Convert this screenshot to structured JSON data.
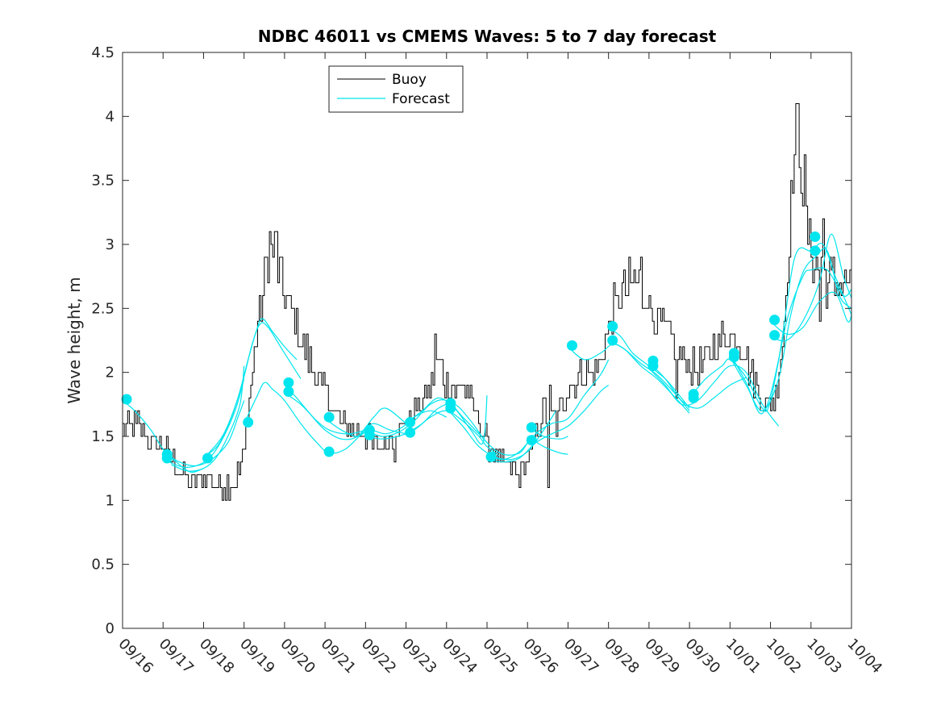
{
  "chart_data": {
    "type": "line",
    "title": "NDBC 46011 vs CMEMS Waves: 5 to 7 day forecast",
    "ylabel": "Wave height, m",
    "xlabel": "",
    "xlim": [
      0,
      18
    ],
    "ylim": [
      0,
      4.5
    ],
    "y_ticks": [
      "0",
      "0.5",
      "1",
      "1.5",
      "2",
      "2.5",
      "3",
      "3.5",
      "4",
      "4.5"
    ],
    "x_ticks": [
      "09/16",
      "09/17",
      "09/18",
      "09/19",
      "09/20",
      "09/21",
      "09/22",
      "09/23",
      "09/24",
      "09/25",
      "09/26",
      "09/27",
      "09/28",
      "09/29",
      "09/30",
      "10/01",
      "10/02",
      "10/03",
      "10/04"
    ],
    "legend": {
      "position": "top-left",
      "entries": [
        "Buoy",
        "Forecast"
      ]
    },
    "colors": {
      "buoy": "#000000",
      "forecast": "#00e5ee"
    },
    "buoy_anchors": [
      [
        0.0,
        1.55
      ],
      [
        0.3,
        1.62
      ],
      [
        0.6,
        1.5
      ],
      [
        1.0,
        1.4
      ],
      [
        1.3,
        1.3
      ],
      [
        1.7,
        1.15
      ],
      [
        2.1,
        1.2
      ],
      [
        2.4,
        1.1
      ],
      [
        2.8,
        1.15
      ],
      [
        3.0,
        1.4
      ],
      [
        3.3,
        2.3
      ],
      [
        3.5,
        2.7
      ],
      [
        3.6,
        2.95
      ],
      [
        3.75,
        2.95
      ],
      [
        3.9,
        2.7
      ],
      [
        4.2,
        2.45
      ],
      [
        4.6,
        2.1
      ],
      [
        4.9,
        1.9
      ],
      [
        5.2,
        1.7
      ],
      [
        5.6,
        1.55
      ],
      [
        6.0,
        1.5
      ],
      [
        6.2,
        1.4
      ],
      [
        6.5,
        1.45
      ],
      [
        6.9,
        1.6
      ],
      [
        7.4,
        1.75
      ],
      [
        7.8,
        2.05
      ],
      [
        8.1,
        1.85
      ],
      [
        8.4,
        1.9
      ],
      [
        8.7,
        1.7
      ],
      [
        9.0,
        1.45
      ],
      [
        9.3,
        1.3
      ],
      [
        9.6,
        1.25
      ],
      [
        9.8,
        1.2
      ],
      [
        10.1,
        1.4
      ],
      [
        10.4,
        1.7
      ],
      [
        10.7,
        1.6
      ],
      [
        11.0,
        1.9
      ],
      [
        11.3,
        2.0
      ],
      [
        11.6,
        1.95
      ],
      [
        11.9,
        2.2
      ],
      [
        12.1,
        2.5
      ],
      [
        12.4,
        2.65
      ],
      [
        12.7,
        2.7
      ],
      [
        12.9,
        2.6
      ],
      [
        13.2,
        2.4
      ],
      [
        13.5,
        2.25
      ],
      [
        13.9,
        2.1
      ],
      [
        14.2,
        2.0
      ],
      [
        14.6,
        2.2
      ],
      [
        15.0,
        2.3
      ],
      [
        15.3,
        2.2
      ],
      [
        15.6,
        1.95
      ],
      [
        15.8,
        1.75
      ],
      [
        16.1,
        1.8
      ],
      [
        16.3,
        2.3
      ],
      [
        16.45,
        3.0
      ],
      [
        16.55,
        3.6
      ],
      [
        16.65,
        4.0
      ],
      [
        16.75,
        3.6
      ],
      [
        16.9,
        3.1
      ],
      [
        17.1,
        2.8
      ],
      [
        17.25,
        2.9
      ],
      [
        17.4,
        2.7
      ]
    ],
    "buoy_spikes": [
      [
        3.62,
        3.1
      ],
      [
        3.78,
        3.1
      ],
      [
        6.7,
        1.3
      ],
      [
        7.7,
        2.3
      ],
      [
        10.5,
        1.1
      ],
      [
        10.55,
        1.9
      ],
      [
        12.8,
        2.9
      ],
      [
        13.03,
        3.0
      ],
      [
        13.05,
        2.5
      ],
      [
        13.65,
        1.8
      ],
      [
        16.65,
        4.1
      ],
      [
        16.82,
        3.7
      ],
      [
        17.2,
        2.4
      ],
      [
        17.3,
        3.2
      ]
    ],
    "forecast_runs": [
      [
        [
          0.0,
          1.78
        ],
        [
          0.3,
          1.7
        ],
        [
          0.7,
          1.55
        ],
        [
          1.0,
          1.4
        ],
        [
          1.4,
          1.28
        ],
        [
          1.7,
          1.22
        ],
        [
          2.0,
          1.25
        ]
      ],
      [
        [
          1.0,
          1.38
        ],
        [
          1.4,
          1.3
        ],
        [
          1.8,
          1.27
        ],
        [
          2.2,
          1.32
        ],
        [
          2.6,
          1.45
        ],
        [
          2.85,
          1.65
        ],
        [
          3.0,
          1.78
        ]
      ],
      [
        [
          1.0,
          1.32
        ],
        [
          1.5,
          1.26
        ],
        [
          1.9,
          1.28
        ],
        [
          2.2,
          1.35
        ],
        [
          2.5,
          1.5
        ],
        [
          2.8,
          1.72
        ],
        [
          3.0,
          1.95
        ]
      ],
      [
        [
          1.2,
          1.28
        ],
        [
          1.6,
          1.23
        ],
        [
          2.0,
          1.25
        ],
        [
          2.3,
          1.33
        ],
        [
          2.6,
          1.5
        ],
        [
          2.9,
          1.75
        ],
        [
          3.0,
          2.05
        ]
      ],
      [
        [
          2.0,
          1.34
        ],
        [
          2.4,
          1.45
        ],
        [
          2.8,
          1.75
        ],
        [
          3.1,
          2.1
        ],
        [
          3.3,
          2.32
        ],
        [
          3.45,
          2.42
        ],
        [
          3.7,
          2.32
        ],
        [
          4.0,
          2.2
        ],
        [
          4.3,
          2.1
        ]
      ],
      [
        [
          2.1,
          1.36
        ],
        [
          2.5,
          1.52
        ],
        [
          2.9,
          1.85
        ],
        [
          3.2,
          2.22
        ],
        [
          3.4,
          2.38
        ],
        [
          3.6,
          2.35
        ],
        [
          3.9,
          2.2
        ],
        [
          4.2,
          2.05
        ],
        [
          4.4,
          1.95
        ]
      ],
      [
        [
          3.0,
          1.6
        ],
        [
          3.3,
          1.8
        ],
        [
          3.5,
          1.92
        ],
        [
          3.7,
          1.87
        ],
        [
          4.0,
          1.78
        ],
        [
          4.4,
          1.6
        ],
        [
          4.8,
          1.45
        ],
        [
          5.1,
          1.37
        ],
        [
          5.5,
          1.4
        ],
        [
          5.9,
          1.52
        ],
        [
          6.0,
          1.55
        ]
      ],
      [
        [
          4.0,
          1.9
        ],
        [
          4.3,
          1.8
        ],
        [
          4.7,
          1.65
        ],
        [
          5.0,
          1.55
        ],
        [
          5.4,
          1.48
        ],
        [
          5.8,
          1.5
        ],
        [
          6.2,
          1.65
        ],
        [
          6.5,
          1.72
        ],
        [
          7.0,
          1.6
        ]
      ],
      [
        [
          4.0,
          1.84
        ],
        [
          4.4,
          1.75
        ],
        [
          4.8,
          1.62
        ],
        [
          5.1,
          1.55
        ],
        [
          5.5,
          1.52
        ],
        [
          5.9,
          1.54
        ],
        [
          6.2,
          1.6
        ],
        [
          6.6,
          1.55
        ],
        [
          7.0,
          1.52
        ]
      ],
      [
        [
          5.0,
          1.64
        ],
        [
          5.4,
          1.55
        ],
        [
          5.8,
          1.5
        ],
        [
          6.1,
          1.55
        ],
        [
          6.5,
          1.52
        ],
        [
          6.9,
          1.57
        ],
        [
          7.2,
          1.65
        ],
        [
          7.6,
          1.7
        ],
        [
          8.0,
          1.65
        ]
      ],
      [
        [
          6.0,
          1.55
        ],
        [
          6.4,
          1.5
        ],
        [
          6.8,
          1.53
        ],
        [
          7.2,
          1.62
        ],
        [
          7.6,
          1.75
        ],
        [
          8.0,
          1.78
        ],
        [
          8.4,
          1.65
        ],
        [
          8.8,
          1.52
        ],
        [
          9.0,
          1.45
        ]
      ],
      [
        [
          6.0,
          1.5
        ],
        [
          6.4,
          1.48
        ],
        [
          6.8,
          1.5
        ],
        [
          7.2,
          1.55
        ],
        [
          7.6,
          1.65
        ],
        [
          8.0,
          1.7
        ],
        [
          8.4,
          1.62
        ],
        [
          8.8,
          1.5
        ],
        [
          9.0,
          1.42
        ],
        [
          9.3,
          1.35
        ]
      ],
      [
        [
          7.0,
          1.52
        ],
        [
          7.4,
          1.6
        ],
        [
          7.8,
          1.72
        ],
        [
          8.2,
          1.75
        ],
        [
          8.6,
          1.62
        ],
        [
          9.0,
          1.45
        ],
        [
          9.4,
          1.36
        ],
        [
          9.8,
          1.37
        ],
        [
          10.0,
          1.45
        ]
      ],
      [
        [
          7.0,
          1.6
        ],
        [
          7.4,
          1.7
        ],
        [
          7.8,
          1.8
        ],
        [
          8.2,
          1.72
        ],
        [
          8.6,
          1.55
        ],
        [
          8.9,
          1.45
        ],
        [
          9.0,
          1.82
        ]
      ],
      [
        [
          8.0,
          1.72
        ],
        [
          8.4,
          1.58
        ],
        [
          8.8,
          1.42
        ],
        [
          9.2,
          1.34
        ],
        [
          9.6,
          1.32
        ],
        [
          10.0,
          1.38
        ],
        [
          10.4,
          1.55
        ],
        [
          10.7,
          1.7
        ]
      ],
      [
        [
          9.0,
          1.35
        ],
        [
          9.4,
          1.32
        ],
        [
          9.8,
          1.38
        ],
        [
          10.2,
          1.52
        ],
        [
          10.6,
          1.6
        ],
        [
          11.0,
          1.64
        ],
        [
          11.4,
          1.82
        ],
        [
          11.8,
          1.98
        ],
        [
          12.0,
          2.1
        ]
      ],
      [
        [
          9.0,
          1.32
        ],
        [
          9.4,
          1.3
        ],
        [
          9.8,
          1.33
        ],
        [
          10.2,
          1.45
        ],
        [
          10.6,
          1.52
        ],
        [
          11.0,
          1.58
        ],
        [
          11.4,
          1.7
        ],
        [
          11.8,
          1.85
        ],
        [
          12.0,
          1.9
        ]
      ],
      [
        [
          10.0,
          1.5
        ],
        [
          10.4,
          1.42
        ],
        [
          10.8,
          1.37
        ],
        [
          11.0,
          1.36
        ]
      ],
      [
        [
          10.0,
          1.58
        ],
        [
          10.4,
          1.5
        ],
        [
          10.8,
          1.48
        ],
        [
          11.0,
          1.5
        ]
      ],
      [
        [
          11.0,
          2.2
        ],
        [
          11.4,
          2.1
        ],
        [
          11.8,
          2.15
        ],
        [
          12.1,
          2.22
        ],
        [
          12.4,
          2.18
        ],
        [
          12.8,
          2.07
        ],
        [
          13.2,
          1.98
        ],
        [
          13.6,
          1.85
        ],
        [
          14.0,
          1.7
        ]
      ],
      [
        [
          12.0,
          2.35
        ],
        [
          12.3,
          2.28
        ],
        [
          12.6,
          2.15
        ],
        [
          13.0,
          2.05
        ],
        [
          13.4,
          1.95
        ],
        [
          13.8,
          1.8
        ],
        [
          14.0,
          1.72
        ]
      ],
      [
        [
          12.0,
          2.25
        ],
        [
          12.4,
          2.18
        ],
        [
          12.8,
          2.05
        ],
        [
          13.2,
          1.95
        ],
        [
          13.6,
          1.82
        ],
        [
          14.0,
          1.68
        ]
      ],
      [
        [
          13.0,
          2.08
        ],
        [
          13.4,
          1.95
        ],
        [
          13.8,
          1.78
        ],
        [
          14.2,
          1.72
        ],
        [
          14.6,
          1.8
        ],
        [
          15.0,
          1.9
        ],
        [
          15.4,
          1.96
        ]
      ],
      [
        [
          13.0,
          2.03
        ],
        [
          13.4,
          1.9
        ],
        [
          13.8,
          1.75
        ],
        [
          14.2,
          1.78
        ],
        [
          14.6,
          1.92
        ],
        [
          15.0,
          2.05
        ],
        [
          15.4,
          2.0
        ],
        [
          15.8,
          1.75
        ],
        [
          16.2,
          1.58
        ]
      ],
      [
        [
          14.0,
          1.8
        ],
        [
          14.4,
          1.95
        ],
        [
          14.8,
          2.05
        ],
        [
          15.0,
          2.1
        ],
        [
          15.4,
          1.96
        ],
        [
          15.8,
          1.72
        ],
        [
          16.0,
          1.78
        ],
        [
          16.4,
          2.4
        ],
        [
          16.8,
          2.75
        ],
        [
          17.0,
          2.8
        ],
        [
          17.4,
          2.8
        ],
        [
          17.8,
          2.6
        ],
        [
          18.0,
          2.65
        ]
      ],
      [
        [
          15.0,
          2.12
        ],
        [
          15.4,
          1.9
        ],
        [
          15.8,
          1.7
        ],
        [
          16.2,
          1.95
        ],
        [
          16.5,
          2.45
        ],
        [
          16.8,
          2.78
        ],
        [
          17.1,
          2.9
        ],
        [
          17.4,
          2.95
        ],
        [
          17.7,
          2.6
        ],
        [
          18.0,
          2.5
        ]
      ],
      [
        [
          15.0,
          2.15
        ],
        [
          15.4,
          1.92
        ],
        [
          15.8,
          1.68
        ],
        [
          16.2,
          2.1
        ],
        [
          16.6,
          2.9
        ],
        [
          17.0,
          2.95
        ],
        [
          17.3,
          3.0
        ],
        [
          17.6,
          2.75
        ],
        [
          18.0,
          2.45
        ]
      ],
      [
        [
          16.0,
          2.4
        ],
        [
          16.4,
          2.3
        ],
        [
          16.8,
          2.35
        ],
        [
          17.2,
          2.55
        ],
        [
          17.6,
          2.62
        ],
        [
          17.9,
          2.4
        ],
        [
          18.0,
          2.45
        ]
      ],
      [
        [
          16.0,
          2.28
        ],
        [
          16.4,
          2.25
        ],
        [
          16.8,
          2.4
        ],
        [
          17.2,
          2.7
        ],
        [
          17.5,
          3.08
        ],
        [
          17.8,
          2.75
        ],
        [
          18.0,
          2.58
        ]
      ]
    ],
    "forecast_markers": [
      [
        0.1,
        1.79
      ],
      [
        1.1,
        1.36
      ],
      [
        1.1,
        1.33
      ],
      [
        2.1,
        1.33
      ],
      [
        3.1,
        1.61
      ],
      [
        4.1,
        1.92
      ],
      [
        4.1,
        1.85
      ],
      [
        5.1,
        1.65
      ],
      [
        5.1,
        1.38
      ],
      [
        6.1,
        1.55
      ],
      [
        6.1,
        1.51
      ],
      [
        7.1,
        1.61
      ],
      [
        7.1,
        1.53
      ],
      [
        8.1,
        1.76
      ],
      [
        8.1,
        1.72
      ],
      [
        9.1,
        1.34
      ],
      [
        10.1,
        1.57
      ],
      [
        10.1,
        1.47
      ],
      [
        11.1,
        2.21
      ],
      [
        12.1,
        2.36
      ],
      [
        12.1,
        2.25
      ],
      [
        13.1,
        2.09
      ],
      [
        13.1,
        2.05
      ],
      [
        14.1,
        1.83
      ],
      [
        14.1,
        1.8
      ],
      [
        15.1,
        2.15
      ],
      [
        15.1,
        2.12
      ],
      [
        16.1,
        2.41
      ],
      [
        16.1,
        2.29
      ],
      [
        17.1,
        3.06
      ],
      [
        17.1,
        2.95
      ]
    ]
  }
}
